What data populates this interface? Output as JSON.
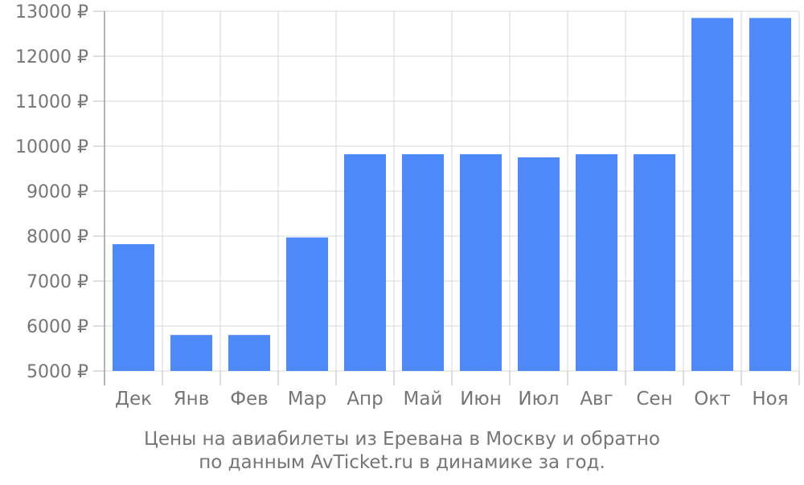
{
  "chart_data": {
    "type": "bar",
    "categories": [
      "Дек",
      "Янв",
      "Фев",
      "Мар",
      "Апр",
      "Май",
      "Июн",
      "Июл",
      "Авг",
      "Сен",
      "Окт",
      "Ноя"
    ],
    "values": [
      7820,
      5800,
      5800,
      7970,
      9820,
      9820,
      9820,
      9750,
      9820,
      9820,
      12850,
      12850
    ],
    "ylim": [
      5000,
      13000
    ],
    "yticks": [
      5000,
      6000,
      7000,
      8000,
      9000,
      10000,
      11000,
      12000,
      13000
    ],
    "ytick_suffix": " ₽",
    "grid": true,
    "bar_color": "#4d89f9",
    "grid_color": "#d9d9d9",
    "text_color": "#757575"
  },
  "caption": {
    "line1": "Цены на авиабилеты из Еревана в Москву и обратно",
    "line2": "по данным AvTicket.ru в динамике за год."
  }
}
